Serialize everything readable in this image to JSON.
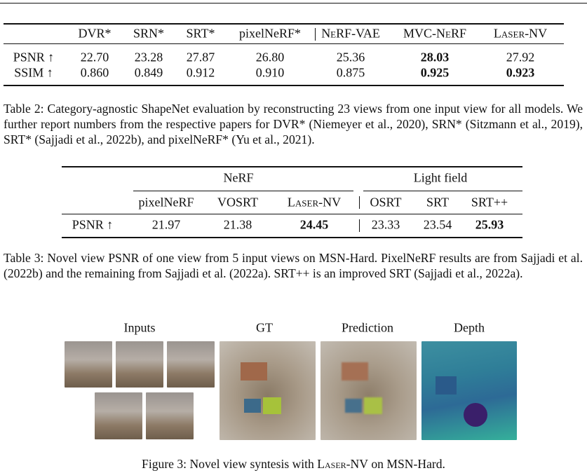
{
  "table2": {
    "columns": [
      "DVR*",
      "SRN*",
      "SRT*",
      "pixelNeRF*",
      "NeRF-VAE",
      "MVC-NeRF",
      "Laser-NV"
    ],
    "rows": [
      {
        "label": "PSNR ↑",
        "values": [
          "22.70",
          "23.28",
          "27.87",
          "26.80",
          "25.36",
          "28.03",
          "27.92"
        ]
      },
      {
        "label": "SSIM ↑",
        "values": [
          "0.860",
          "0.849",
          "0.912",
          "0.910",
          "0.875",
          "0.925",
          "0.923"
        ]
      }
    ],
    "bold": [
      [
        0,
        5
      ],
      [
        1,
        5
      ],
      [
        1,
        6
      ]
    ],
    "caption": "Table 2: Category-agnostic ShapeNet evaluation by reconstructing 23 views from one input view for all models. We further report numbers from the respective papers for DVR* (Niemeyer et al., 2020), SRN* (Sitzmann et al., 2019), SRT* (Sajjadi et al., 2022b), and pixelNeRF* (Yu et al., 2021)."
  },
  "table3": {
    "groups": [
      "NeRF",
      "Light field"
    ],
    "columns": [
      "pixelNeRF",
      "VOSRT",
      "Laser-NV",
      "OSRT",
      "SRT",
      "SRT++"
    ],
    "rows": [
      {
        "label": "PSNR ↑",
        "values": [
          "21.97",
          "21.38",
          "24.45",
          "23.33",
          "23.54",
          "25.93"
        ]
      }
    ],
    "bold": [
      [
        0,
        2
      ],
      [
        0,
        5
      ]
    ],
    "caption": "Table 3: Novel view PSNR of one view from 5 input views on MSN-Hard. PixelNeRF results are from Sajjadi et al. (2022b) and the remaining from Sajjadi et al. (2022a). SRT++ is an improved SRT (Sajjadi et al., 2022a)."
  },
  "figure": {
    "labels": [
      "Inputs",
      "GT",
      "Prediction",
      "Depth"
    ],
    "caption": [
      "Figure 3: Novel view syntesis with",
      "Laser-NV",
      "on MSN-Hard."
    ]
  }
}
